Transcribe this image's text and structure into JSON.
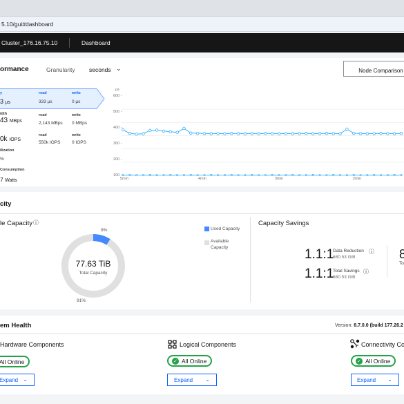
{
  "browser": {
    "url": "5.10/gui#dashboard"
  },
  "topnav": {
    "cluster": "Cluster_176.16.75.10",
    "page": "Dashboard"
  },
  "performance": {
    "title": "ormance",
    "granularity_label": "Granularity",
    "granularity_value": "seconds",
    "node_comparison": "Node Comparison",
    "latency": {
      "label": "y",
      "value": "3",
      "unit": "µs",
      "read_label": "read",
      "read_value": "333 µs",
      "write_label": "write",
      "write_value": "0 µs"
    },
    "bandwidth": {
      "label": "idth",
      "value": "43",
      "unit": "MBps",
      "read_label": "read",
      "read_value": "2,143 MBps",
      "write_label": "write",
      "write_value": "0 MBps"
    },
    "iops": {
      "value": "0k",
      "unit": "IOPS",
      "read_label": "read",
      "read_value": "550k IOPS",
      "write_label": "write",
      "write_value": "0 IOPS"
    },
    "utilization": {
      "label": "ilization",
      "value": "%"
    },
    "power": {
      "label": "Consumption",
      "value": "7",
      "unit": "Watts"
    }
  },
  "chart_data": {
    "type": "line",
    "ylabel": "µs",
    "ylim": [
      0,
      600
    ],
    "yticks": [
      "600 -",
      "500 -",
      "400 -",
      "300 -",
      "200 -",
      "100 -",
      "0 -"
    ],
    "xticks": [
      "5min",
      "4min",
      "3min",
      "2min"
    ],
    "series": [
      {
        "color": "#33b1ff",
        "values": [
          345,
          318,
          312,
          315,
          340,
          342,
          335,
          330,
          325,
          355,
          320,
          318,
          316,
          315,
          316,
          315,
          317,
          316,
          315,
          316,
          315,
          317,
          316,
          315,
          316,
          315,
          316,
          317,
          315,
          316,
          317,
          316,
          315,
          350,
          318,
          316,
          315,
          316,
          317,
          316,
          315,
          317
        ]
      },
      {
        "color": "#33b1ff",
        "values": [
          2,
          3,
          2,
          2,
          3,
          2,
          2,
          3,
          2,
          2,
          3,
          2,
          2,
          3,
          2,
          2,
          3,
          2,
          2,
          3,
          2,
          2,
          3,
          2,
          2,
          3,
          2,
          2,
          3,
          2,
          2,
          3,
          2,
          2,
          3,
          2,
          2,
          3,
          2,
          2,
          3,
          2
        ]
      }
    ]
  },
  "capacity": {
    "title": "city",
    "usable_title": "le Capacity",
    "total_value": "77.63 TiB",
    "total_label": "Total Capacity",
    "used_pct": 9,
    "used_label": "9%",
    "available_label": "91%",
    "legend_used": "Used Capacity",
    "legend_available": "Available Capacity",
    "used_color": "#4589ff",
    "available_color": "#e0e0e0",
    "savings_title": "Capacity Savings",
    "data_reduction": {
      "ratio": "1.1:1",
      "label": "Data Reduction",
      "value": "680.53 GiB"
    },
    "total_savings": {
      "ratio": "1.1:1",
      "label": "Total Savings",
      "value": "680.53 GiB"
    },
    "cut_number": "8",
    "cut_label": "To"
  },
  "health": {
    "title": "em Health",
    "version_label": "Version:",
    "version_value": "8.7.0.0 (build 177.26.2",
    "components": [
      {
        "title": "Hardware Components",
        "status": "All Online",
        "expand": "Expand"
      },
      {
        "title": "Logical Components",
        "status": "All Online",
        "expand": "Expand"
      },
      {
        "title": "Connectivity Co",
        "status": "All Online",
        "expand": "Expand"
      }
    ]
  }
}
